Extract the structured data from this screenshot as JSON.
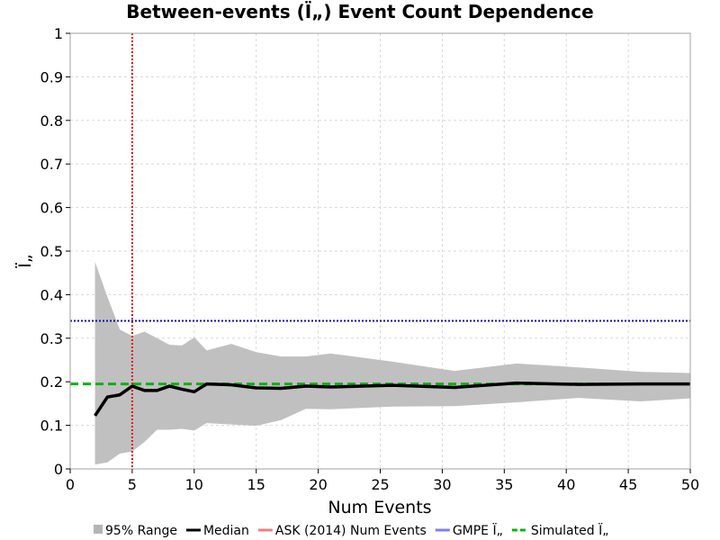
{
  "chart_data": {
    "type": "line",
    "title": "Between-events (Ï„) Event Count Dependence",
    "xlabel": "Num Events",
    "ylabel": "Ï„",
    "xlim": [
      0,
      50
    ],
    "ylim": [
      0,
      1
    ],
    "x_ticks": [
      0,
      5,
      10,
      15,
      20,
      25,
      30,
      35,
      40,
      45,
      50
    ],
    "y_ticks": [
      0,
      0.1,
      0.2,
      0.3,
      0.4,
      0.5,
      0.6,
      0.7,
      0.8,
      0.9,
      1
    ],
    "x_tick_labels": [
      "0",
      "5",
      "10",
      "15",
      "20",
      "25",
      "30",
      "35",
      "40",
      "45",
      "50"
    ],
    "y_tick_labels": [
      "0",
      "0.1",
      "0.2",
      "0.3",
      "0.4",
      "0.5",
      "0.6",
      "0.7",
      "0.8",
      "0.9",
      "1"
    ],
    "grid": true,
    "legend_position": "bottom",
    "range_band": {
      "name": "95% Range",
      "color": "#c0c0c0",
      "x": [
        2,
        3,
        4,
        5,
        6,
        7,
        8,
        9,
        10,
        11,
        13,
        15,
        17,
        19,
        21,
        26,
        31,
        36,
        41,
        46,
        50
      ],
      "upper": [
        0.475,
        0.395,
        0.32,
        0.305,
        0.315,
        0.3,
        0.285,
        0.283,
        0.302,
        0.272,
        0.287,
        0.268,
        0.258,
        0.258,
        0.265,
        0.246,
        0.225,
        0.242,
        0.233,
        0.223,
        0.22
      ],
      "lower": [
        0.01,
        0.015,
        0.035,
        0.04,
        0.062,
        0.09,
        0.09,
        0.092,
        0.088,
        0.105,
        0.102,
        0.099,
        0.112,
        0.138,
        0.137,
        0.143,
        0.144,
        0.153,
        0.163,
        0.155,
        0.162
      ]
    },
    "median": {
      "name": "Median",
      "color": "#000000",
      "x": [
        2,
        3,
        4,
        5,
        6,
        7,
        8,
        9,
        10,
        11,
        13,
        15,
        17,
        19,
        21,
        26,
        31,
        36,
        41,
        46,
        50
      ],
      "values": [
        0.122,
        0.165,
        0.17,
        0.19,
        0.18,
        0.18,
        0.19,
        0.183,
        0.177,
        0.195,
        0.193,
        0.186,
        0.185,
        0.19,
        0.188,
        0.192,
        0.187,
        0.197,
        0.194,
        0.195,
        0.195
      ]
    },
    "reference_lines": [
      {
        "name": "ASK (2014) Num Events",
        "orientation": "vertical",
        "value": 5,
        "color": "#e01010",
        "legend_color": "#f08080",
        "style": "dotted"
      },
      {
        "name": "GMPE Ï„",
        "orientation": "horizontal",
        "value": 0.34,
        "color": "#1010a0",
        "legend_color": "#8080f0",
        "style": "dotted"
      },
      {
        "name": "Simulated Ï„",
        "orientation": "horizontal",
        "value": 0.195,
        "color": "#10b010",
        "legend_color": "#10b010",
        "style": "dashed"
      }
    ],
    "legend": [
      {
        "label": "95% Range",
        "kind": "swatch",
        "color": "#b4b4b4"
      },
      {
        "label": "Median",
        "kind": "line",
        "color": "#000000"
      },
      {
        "label": "ASK (2014) Num Events",
        "kind": "line",
        "color": "#f08080"
      },
      {
        "label": "GMPE Ï„",
        "kind": "line",
        "color": "#8080f0"
      },
      {
        "label": "Simulated Ï„",
        "kind": "dashed",
        "color": "#10b010"
      }
    ]
  }
}
